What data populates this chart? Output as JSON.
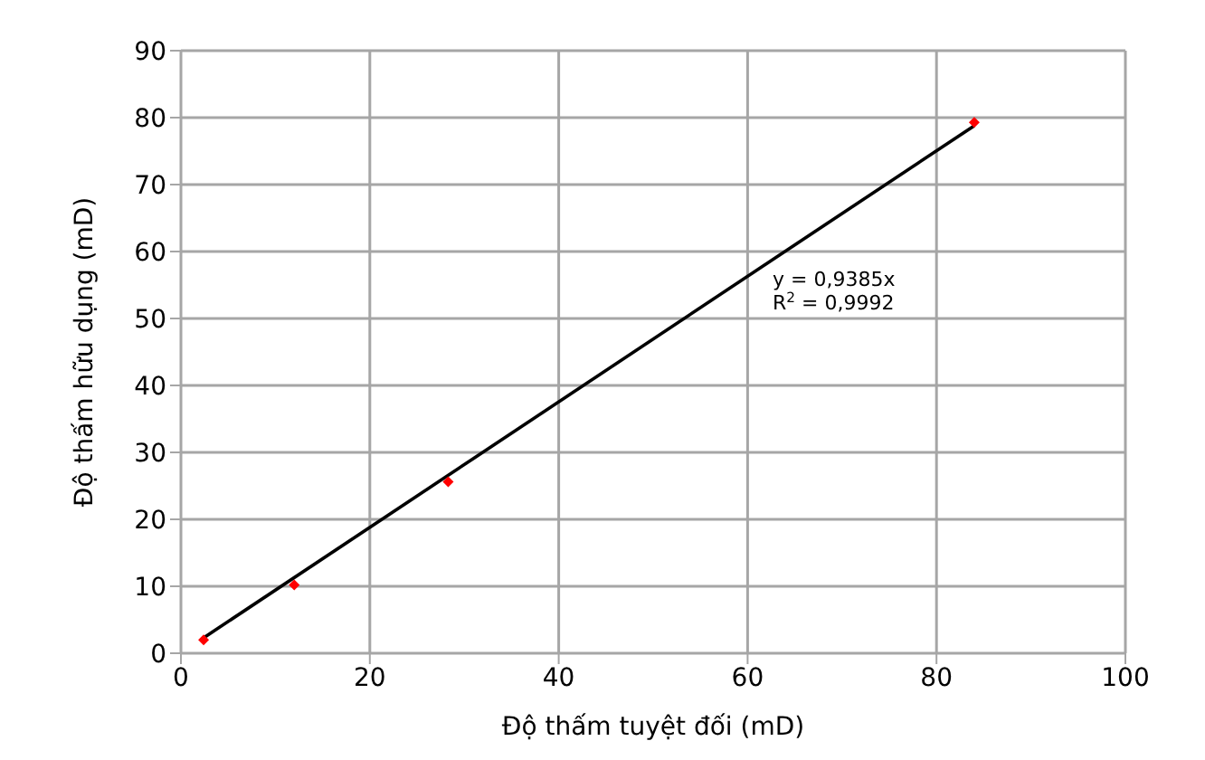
{
  "chart_data": {
    "type": "scatter",
    "xlabel": "Độ thấm tuyệt đối (mD)",
    "ylabel": "Độ thấm hữu dụng (mD)",
    "x": [
      2.4,
      12,
      28.3,
      84
    ],
    "series": [
      {
        "color": "#ff0000",
        "marker": "diamond",
        "values": [
          2,
          10.2,
          25.6,
          79.3
        ]
      },
      {
        "type": "line",
        "color": "#000000",
        "marker": "none",
        "line_style": "solid",
        "x": [
          2.4,
          84
        ],
        "values": [
          2.3,
          78.8
        ]
      }
    ],
    "annotations": [
      "y = 0,9385x",
      "R$^{2}$ = 0,9992"
    ],
    "xlim": [
      0,
      100
    ],
    "xticks": [
      0,
      20,
      40,
      60,
      80,
      100
    ],
    "ylim": [
      0,
      90
    ],
    "yticks": [
      0,
      10,
      20,
      30,
      40,
      50,
      60,
      70,
      80,
      90
    ],
    "grid": true,
    "legend": false
  }
}
